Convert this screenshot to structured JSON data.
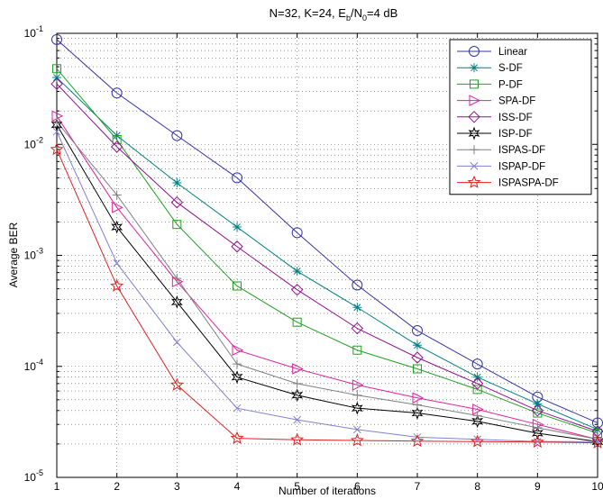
{
  "chart_data": {
    "type": "line",
    "title_parts": [
      "N=32, K=24, E",
      "b",
      "/N",
      "0",
      "=4  dB"
    ],
    "xlabel": "Number of iterations",
    "ylabel": "Average BER",
    "x": [
      1,
      2,
      3,
      4,
      5,
      6,
      7,
      8,
      9,
      10
    ],
    "xlim": [
      1,
      10
    ],
    "ylim": [
      1e-05,
      0.1
    ],
    "yscale": "log",
    "x_tick_labels": [
      "1",
      "2",
      "3",
      "4",
      "5",
      "6",
      "7",
      "8",
      "9",
      "10"
    ],
    "y_tick_labels": [
      {
        "base": "10",
        "exp": "-5"
      },
      {
        "base": "10",
        "exp": "-4"
      },
      {
        "base": "10",
        "exp": "-3"
      },
      {
        "base": "10",
        "exp": "-2"
      },
      {
        "base": "10",
        "exp": "-1"
      }
    ],
    "grid": true,
    "legend_position": "top-right",
    "series": [
      {
        "name": "Linear",
        "color": "#3333aa",
        "marker": "circle",
        "values": [
          0.088,
          0.029,
          0.012,
          0.005,
          0.0016,
          0.00054,
          0.00021,
          0.000105,
          5.3e-05,
          3.1e-05
        ]
      },
      {
        "name": "S-DF",
        "color": "#008080",
        "marker": "asterisk",
        "values": [
          0.04,
          0.012,
          0.0045,
          0.0018,
          0.00072,
          0.00034,
          0.000155,
          8e-05,
          4.6e-05,
          2.7e-05
        ]
      },
      {
        "name": "P-DF",
        "color": "#20a020",
        "marker": "square",
        "values": [
          0.048,
          0.011,
          0.0019,
          0.00053,
          0.00025,
          0.00014,
          9.5e-05,
          6.2e-05,
          3.8e-05,
          2.5e-05
        ]
      },
      {
        "name": "SPA-DF",
        "color": "#e020a0",
        "marker": "triangle-right",
        "values": [
          0.018,
          0.0027,
          0.00058,
          0.00014,
          9.5e-05,
          6.8e-05,
          5.2e-05,
          4.1e-05,
          3e-05,
          2.2e-05
        ]
      },
      {
        "name": "ISS-DF",
        "color": "#901090",
        "marker": "diamond",
        "values": [
          0.035,
          0.0095,
          0.003,
          0.0012,
          0.00049,
          0.00022,
          0.00012,
          7e-05,
          4e-05,
          2.6e-05
        ]
      },
      {
        "name": "ISP-DF",
        "color": "#000000",
        "marker": "hexagram",
        "values": [
          0.015,
          0.0018,
          0.00038,
          8e-05,
          5.5e-05,
          4.2e-05,
          3.8e-05,
          3.2e-05,
          2.5e-05,
          2.1e-05
        ]
      },
      {
        "name": "ISPAS-DF",
        "color": "#808080",
        "marker": "plus",
        "values": [
          0.016,
          0.0035,
          0.00062,
          0.000105,
          7e-05,
          5.5e-05,
          4.5e-05,
          3.6e-05,
          2.8e-05,
          2.2e-05
        ]
      },
      {
        "name": "ISPAP-DF",
        "color": "#8080d0",
        "marker": "x",
        "values": [
          0.013,
          0.00085,
          0.000165,
          4.2e-05,
          3.3e-05,
          2.7e-05,
          2.3e-05,
          2.2e-05,
          2.1e-05,
          2.1e-05
        ]
      },
      {
        "name": "ISPASPA-DF",
        "color": "#e02020",
        "marker": "pentagram",
        "values": [
          0.009,
          0.00053,
          6.8e-05,
          2.25e-05,
          2.18e-05,
          2.15e-05,
          2.12e-05,
          2.1e-05,
          2.08e-05,
          2.05e-05
        ]
      }
    ]
  }
}
